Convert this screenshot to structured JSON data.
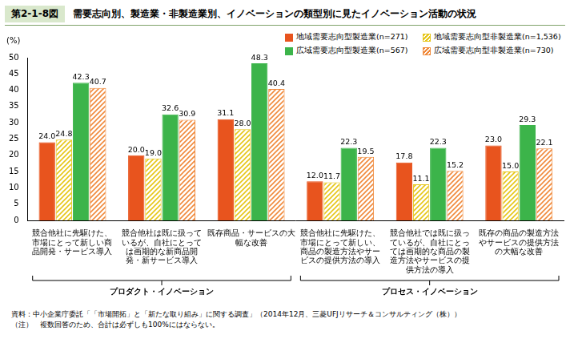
{
  "chart_data": {
    "type": "bar",
    "figure_label": "第2-1-8図",
    "title": "需要志向別、製造業・非製造業別、イノベーションの類型別に見たイノベーション活動の状況",
    "y_label": "(%)",
    "categories": [
      [
        "競合他社に先駆けた、",
        "市場にとって新しい商",
        "品開発・サービス導入"
      ],
      [
        "競合他社は既に扱って",
        "いるが、自社にとって",
        "は画期的な新商品開",
        "発・新サービス導入"
      ],
      [
        "既存商品・サービスの大",
        "幅な改善"
      ],
      [
        "競合他社に先駆けた、",
        "市場にとって新しい、",
        "商品の製造方法やサー",
        "ビスの提供方法の導入"
      ],
      [
        "競合他社では既に扱っ",
        "ているが、自社にとっ",
        "ては画期的な商品の製",
        "造方法やサービスの提",
        "供方法の導入"
      ],
      [
        "既存の商品の製造方法",
        "やサービスの提供方法",
        "の大幅な改善"
      ]
    ],
    "category_groups": [
      {
        "label": "プロダクト・イノベーション",
        "span": 3
      },
      {
        "label": "プロセス・イノベーション",
        "span": 3
      }
    ],
    "series": [
      {
        "name": "地域需要志向型製造業(n=271)",
        "color": "#e8541e",
        "values": [
          24.0,
          20.0,
          31.1,
          12.0,
          17.8,
          23.0
        ],
        "value_labels": [
          "24.0",
          "20.0",
          "31.1",
          "12.0",
          "17.8",
          "23.0"
        ]
      },
      {
        "name": "地域需要志向型非製造業(n=1,536)",
        "color": "#e6c619",
        "values": [
          24.8,
          19.0,
          28.0,
          11.7,
          11.1,
          15.0
        ],
        "value_labels": [
          "24.8",
          "19.0",
          "28.0",
          "11.7",
          "11.1",
          "15.0"
        ]
      },
      {
        "name": "広域需要志向型製造業(n=567)",
        "color": "#3cb44a",
        "values": [
          42.3,
          32.6,
          48.3,
          22.3,
          22.3,
          29.3
        ],
        "value_labels": [
          "42.3",
          "32.6",
          "48.3",
          "22.3",
          "22.3",
          "29.3"
        ]
      },
      {
        "name": "広域需要志向型非製造業(n=730)",
        "color": "#f08a3c",
        "values": [
          40.7,
          30.9,
          40.4,
          19.5,
          15.2,
          22.1
        ],
        "value_labels": [
          "40.7",
          "30.9",
          "40.4",
          "19.5",
          "15.2",
          "22.1"
        ]
      }
    ],
    "ylim": [
      0,
      50
    ],
    "yticks": [
      0,
      5,
      10,
      15,
      20,
      25,
      30,
      35,
      40,
      45,
      50
    ],
    "grid": false,
    "data_labels": true,
    "legend": "top-right",
    "notes": [
      "資料：中小企業庁委託「「市場開拓」と「新たな取り組み」に関する調査」（2014年12月、三菱UFJリサーチ＆コンサルティング（株））",
      "（注）　複数回答のため、合計は必ずしも100%にはならない。"
    ]
  }
}
